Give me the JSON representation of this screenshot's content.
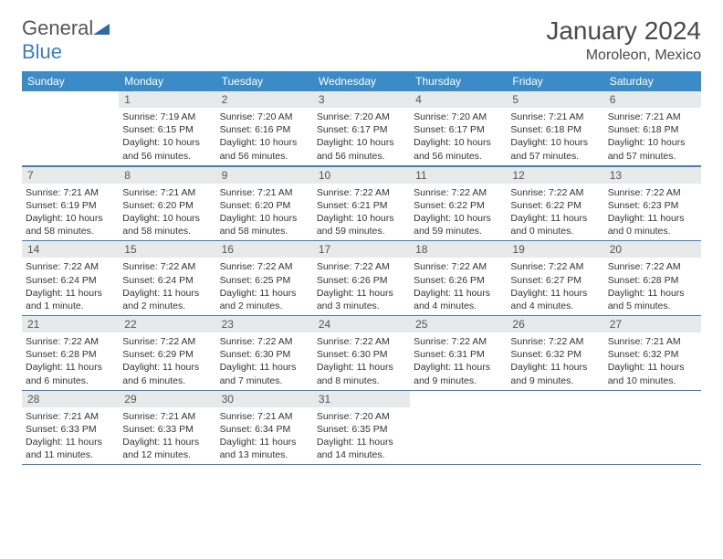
{
  "logo": {
    "text1": "General",
    "text2": "Blue"
  },
  "title": "January 2024",
  "location": "Moroleon, Mexico",
  "colors": {
    "header_bg": "#3b8bc9",
    "header_text": "#ffffff",
    "daynum_bg": "#e8e9ea",
    "border": "#3b7fc4",
    "text": "#333333",
    "title_text": "#4a4a4a"
  },
  "day_names": [
    "Sunday",
    "Monday",
    "Tuesday",
    "Wednesday",
    "Thursday",
    "Friday",
    "Saturday"
  ],
  "weeks": [
    [
      {
        "n": "",
        "sr": "",
        "ss": "",
        "dl": ""
      },
      {
        "n": "1",
        "sr": "Sunrise: 7:19 AM",
        "ss": "Sunset: 6:15 PM",
        "dl": "Daylight: 10 hours and 56 minutes."
      },
      {
        "n": "2",
        "sr": "Sunrise: 7:20 AM",
        "ss": "Sunset: 6:16 PM",
        "dl": "Daylight: 10 hours and 56 minutes."
      },
      {
        "n": "3",
        "sr": "Sunrise: 7:20 AM",
        "ss": "Sunset: 6:17 PM",
        "dl": "Daylight: 10 hours and 56 minutes."
      },
      {
        "n": "4",
        "sr": "Sunrise: 7:20 AM",
        "ss": "Sunset: 6:17 PM",
        "dl": "Daylight: 10 hours and 56 minutes."
      },
      {
        "n": "5",
        "sr": "Sunrise: 7:21 AM",
        "ss": "Sunset: 6:18 PM",
        "dl": "Daylight: 10 hours and 57 minutes."
      },
      {
        "n": "6",
        "sr": "Sunrise: 7:21 AM",
        "ss": "Sunset: 6:18 PM",
        "dl": "Daylight: 10 hours and 57 minutes."
      }
    ],
    [
      {
        "n": "7",
        "sr": "Sunrise: 7:21 AM",
        "ss": "Sunset: 6:19 PM",
        "dl": "Daylight: 10 hours and 58 minutes."
      },
      {
        "n": "8",
        "sr": "Sunrise: 7:21 AM",
        "ss": "Sunset: 6:20 PM",
        "dl": "Daylight: 10 hours and 58 minutes."
      },
      {
        "n": "9",
        "sr": "Sunrise: 7:21 AM",
        "ss": "Sunset: 6:20 PM",
        "dl": "Daylight: 10 hours and 58 minutes."
      },
      {
        "n": "10",
        "sr": "Sunrise: 7:22 AM",
        "ss": "Sunset: 6:21 PM",
        "dl": "Daylight: 10 hours and 59 minutes."
      },
      {
        "n": "11",
        "sr": "Sunrise: 7:22 AM",
        "ss": "Sunset: 6:22 PM",
        "dl": "Daylight: 10 hours and 59 minutes."
      },
      {
        "n": "12",
        "sr": "Sunrise: 7:22 AM",
        "ss": "Sunset: 6:22 PM",
        "dl": "Daylight: 11 hours and 0 minutes."
      },
      {
        "n": "13",
        "sr": "Sunrise: 7:22 AM",
        "ss": "Sunset: 6:23 PM",
        "dl": "Daylight: 11 hours and 0 minutes."
      }
    ],
    [
      {
        "n": "14",
        "sr": "Sunrise: 7:22 AM",
        "ss": "Sunset: 6:24 PM",
        "dl": "Daylight: 11 hours and 1 minute."
      },
      {
        "n": "15",
        "sr": "Sunrise: 7:22 AM",
        "ss": "Sunset: 6:24 PM",
        "dl": "Daylight: 11 hours and 2 minutes."
      },
      {
        "n": "16",
        "sr": "Sunrise: 7:22 AM",
        "ss": "Sunset: 6:25 PM",
        "dl": "Daylight: 11 hours and 2 minutes."
      },
      {
        "n": "17",
        "sr": "Sunrise: 7:22 AM",
        "ss": "Sunset: 6:26 PM",
        "dl": "Daylight: 11 hours and 3 minutes."
      },
      {
        "n": "18",
        "sr": "Sunrise: 7:22 AM",
        "ss": "Sunset: 6:26 PM",
        "dl": "Daylight: 11 hours and 4 minutes."
      },
      {
        "n": "19",
        "sr": "Sunrise: 7:22 AM",
        "ss": "Sunset: 6:27 PM",
        "dl": "Daylight: 11 hours and 4 minutes."
      },
      {
        "n": "20",
        "sr": "Sunrise: 7:22 AM",
        "ss": "Sunset: 6:28 PM",
        "dl": "Daylight: 11 hours and 5 minutes."
      }
    ],
    [
      {
        "n": "21",
        "sr": "Sunrise: 7:22 AM",
        "ss": "Sunset: 6:28 PM",
        "dl": "Daylight: 11 hours and 6 minutes."
      },
      {
        "n": "22",
        "sr": "Sunrise: 7:22 AM",
        "ss": "Sunset: 6:29 PM",
        "dl": "Daylight: 11 hours and 6 minutes."
      },
      {
        "n": "23",
        "sr": "Sunrise: 7:22 AM",
        "ss": "Sunset: 6:30 PM",
        "dl": "Daylight: 11 hours and 7 minutes."
      },
      {
        "n": "24",
        "sr": "Sunrise: 7:22 AM",
        "ss": "Sunset: 6:30 PM",
        "dl": "Daylight: 11 hours and 8 minutes."
      },
      {
        "n": "25",
        "sr": "Sunrise: 7:22 AM",
        "ss": "Sunset: 6:31 PM",
        "dl": "Daylight: 11 hours and 9 minutes."
      },
      {
        "n": "26",
        "sr": "Sunrise: 7:22 AM",
        "ss": "Sunset: 6:32 PM",
        "dl": "Daylight: 11 hours and 9 minutes."
      },
      {
        "n": "27",
        "sr": "Sunrise: 7:21 AM",
        "ss": "Sunset: 6:32 PM",
        "dl": "Daylight: 11 hours and 10 minutes."
      }
    ],
    [
      {
        "n": "28",
        "sr": "Sunrise: 7:21 AM",
        "ss": "Sunset: 6:33 PM",
        "dl": "Daylight: 11 hours and 11 minutes."
      },
      {
        "n": "29",
        "sr": "Sunrise: 7:21 AM",
        "ss": "Sunset: 6:33 PM",
        "dl": "Daylight: 11 hours and 12 minutes."
      },
      {
        "n": "30",
        "sr": "Sunrise: 7:21 AM",
        "ss": "Sunset: 6:34 PM",
        "dl": "Daylight: 11 hours and 13 minutes."
      },
      {
        "n": "31",
        "sr": "Sunrise: 7:20 AM",
        "ss": "Sunset: 6:35 PM",
        "dl": "Daylight: 11 hours and 14 minutes."
      },
      {
        "n": "",
        "sr": "",
        "ss": "",
        "dl": ""
      },
      {
        "n": "",
        "sr": "",
        "ss": "",
        "dl": ""
      },
      {
        "n": "",
        "sr": "",
        "ss": "",
        "dl": ""
      }
    ]
  ]
}
